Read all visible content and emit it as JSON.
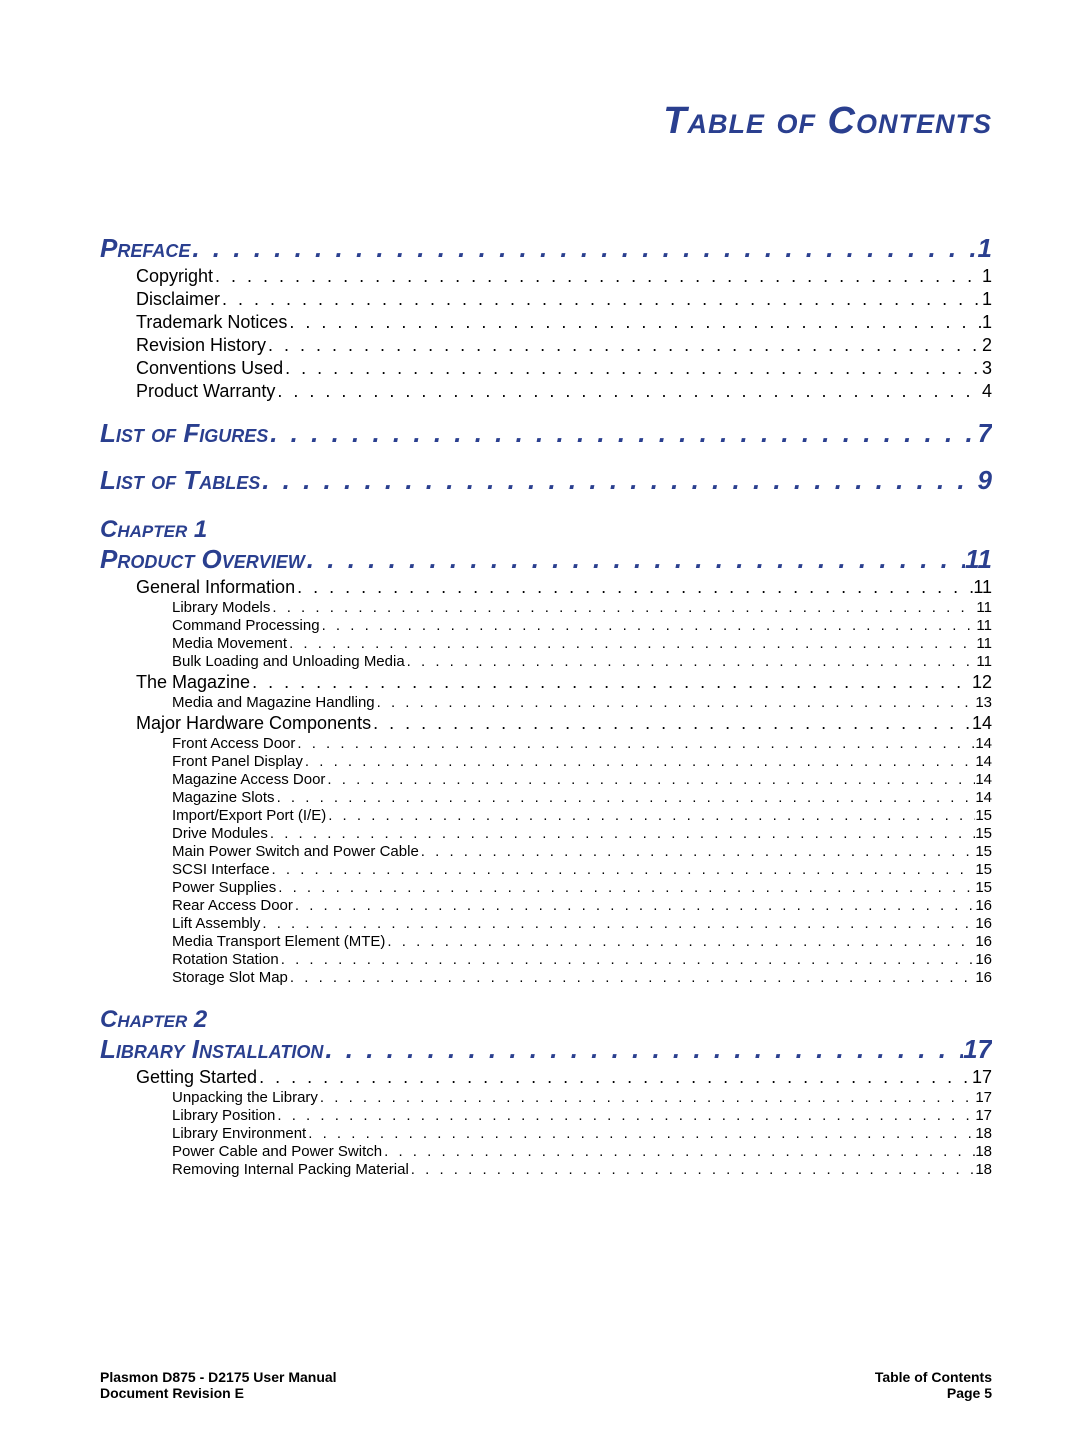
{
  "title": "Table of Contents",
  "colors": {
    "heading": "#2a3f8f",
    "body": "#000000",
    "background": "#ffffff"
  },
  "entries": [
    {
      "level": 1,
      "label": "Preface",
      "page": "1"
    },
    {
      "level": 2,
      "label": "Copyright",
      "page": "1"
    },
    {
      "level": 2,
      "label": "Disclaimer",
      "page": "1"
    },
    {
      "level": 2,
      "label": "Trademark Notices",
      "page": "1"
    },
    {
      "level": 2,
      "label": "Revision History",
      "page": "2"
    },
    {
      "level": 2,
      "label": "Conventions Used",
      "page": "3"
    },
    {
      "level": 2,
      "label": "Product Warranty",
      "page": "4"
    },
    {
      "level": 1,
      "label": "List of Figures",
      "page": "7"
    },
    {
      "level": 1,
      "label": "List of Tables",
      "page": "9"
    },
    {
      "level": "1np",
      "label": "Chapter 1"
    },
    {
      "level": 1,
      "label": "Product Overview",
      "page": "11",
      "no_top_margin": true
    },
    {
      "level": 2,
      "label": "General Information",
      "page": "11"
    },
    {
      "level": 3,
      "label": "Library Models",
      "page": "11"
    },
    {
      "level": 3,
      "label": "Command Processing",
      "page": "11"
    },
    {
      "level": 3,
      "label": "Media Movement",
      "page": "11"
    },
    {
      "level": 3,
      "label": "Bulk Loading and Unloading Media",
      "page": "11"
    },
    {
      "level": 2,
      "label": "The Magazine",
      "page": "12"
    },
    {
      "level": 3,
      "label": "Media and Magazine Handling",
      "page": "13"
    },
    {
      "level": 2,
      "label": "Major Hardware Components",
      "page": "14"
    },
    {
      "level": 3,
      "label": "Front Access Door",
      "page": "14"
    },
    {
      "level": 3,
      "label": "Front Panel Display",
      "page": "14"
    },
    {
      "level": 3,
      "label": "Magazine Access Door",
      "page": "14"
    },
    {
      "level": 3,
      "label": "Magazine Slots",
      "page": "14"
    },
    {
      "level": 3,
      "label": "Import/Export Port (I/E)",
      "page": "15"
    },
    {
      "level": 3,
      "label": "Drive Modules",
      "page": "15"
    },
    {
      "level": 3,
      "label": "Main Power Switch and Power Cable",
      "page": "15"
    },
    {
      "level": 3,
      "label": "SCSI Interface",
      "page": "15"
    },
    {
      "level": 3,
      "label": "Power Supplies",
      "page": "15"
    },
    {
      "level": 3,
      "label": "Rear Access Door",
      "page": "16"
    },
    {
      "level": 3,
      "label": "Lift Assembly",
      "page": "16"
    },
    {
      "level": 3,
      "label": "Media Transport Element (MTE)",
      "page": "16"
    },
    {
      "level": 3,
      "label": "Rotation Station",
      "page": "16"
    },
    {
      "level": 3,
      "label": "Storage Slot Map",
      "page": "16"
    },
    {
      "level": "1np",
      "label": "Chapter 2"
    },
    {
      "level": 1,
      "label": "Library Installation",
      "page": "17",
      "no_top_margin": true
    },
    {
      "level": 2,
      "label": "Getting Started",
      "page": "17"
    },
    {
      "level": 3,
      "label": "Unpacking the Library",
      "page": "17"
    },
    {
      "level": 3,
      "label": "Library Position",
      "page": "17"
    },
    {
      "level": 3,
      "label": "Library Environment",
      "page": "18"
    },
    {
      "level": 3,
      "label": "Power Cable and Power Switch",
      "page": "18"
    },
    {
      "level": 3,
      "label": "Removing Internal Packing Material",
      "page": "18"
    }
  ],
  "footer": {
    "left_line1": "Plasmon D875 - D2175 User Manual",
    "left_line2": "Document Revision E",
    "right_line1": "Table of Contents",
    "right_line2": "Page 5"
  }
}
